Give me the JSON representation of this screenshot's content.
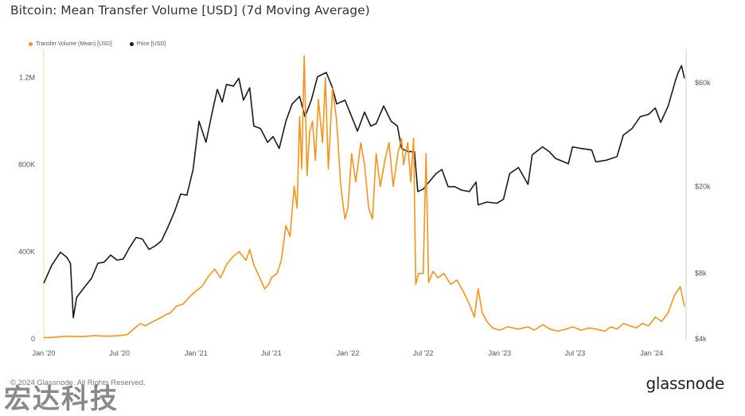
{
  "header": {
    "title": "Bitcoin: Mean Transfer Volume [USD] (7d Moving Average)"
  },
  "legend": [
    {
      "label": "Transfer Volume (Mean) [USD]",
      "color": "#f7931a"
    },
    {
      "label": "Price [USD]",
      "color": "#1a1a1a"
    }
  ],
  "footer": {
    "copyright": "© 2024 Glassnode. All Rights Reserved.",
    "brand": "glassnode",
    "watermark": "宏达科技"
  },
  "chart_data": {
    "type": "line",
    "x_ticks": [
      "Jan '20",
      "Jul '20",
      "Jan '21",
      "Jul '21",
      "Jan '22",
      "Jul '22",
      "Jan '23",
      "Jul '23",
      "Jan '24"
    ],
    "y_left_ticks": [
      "0",
      "400K",
      "800K",
      "1.2M"
    ],
    "y_left_ticks_values": [
      0,
      400000,
      800000,
      1200000
    ],
    "y_right_ticks": [
      "$4k",
      "$8k",
      "$20k",
      "$60k"
    ],
    "y_right_ticks_values": [
      4000,
      8000,
      20000,
      60000
    ],
    "y_left_range": [
      0,
      1300000
    ],
    "y_right_range": [
      4000,
      80000
    ],
    "y_right_scale": "log",
    "grid": false,
    "legend_position": "top-left",
    "series": [
      {
        "name": "Transfer Volume (Mean) [USD]",
        "axis": "left",
        "color": "#f7931a",
        "points": [
          [
            "2020-01-01",
            5000
          ],
          [
            "2020-02-01",
            8000
          ],
          [
            "2020-03-01",
            12000
          ],
          [
            "2020-04-01",
            10000
          ],
          [
            "2020-05-01",
            15000
          ],
          [
            "2020-06-01",
            12000
          ],
          [
            "2020-07-01",
            15000
          ],
          [
            "2020-07-20",
            20000
          ],
          [
            "2020-08-01",
            40000
          ],
          [
            "2020-08-20",
            70000
          ],
          [
            "2020-09-01",
            60000
          ],
          [
            "2020-09-20",
            80000
          ],
          [
            "2020-10-01",
            90000
          ],
          [
            "2020-10-20",
            110000
          ],
          [
            "2020-11-01",
            120000
          ],
          [
            "2020-11-15",
            150000
          ],
          [
            "2020-12-01",
            160000
          ],
          [
            "2020-12-15",
            190000
          ],
          [
            "2021-01-01",
            220000
          ],
          [
            "2021-01-15",
            240000
          ],
          [
            "2021-02-01",
            290000
          ],
          [
            "2021-02-15",
            320000
          ],
          [
            "2021-03-01",
            280000
          ],
          [
            "2021-03-15",
            340000
          ],
          [
            "2021-04-01",
            380000
          ],
          [
            "2021-04-15",
            400000
          ],
          [
            "2021-05-01",
            360000
          ],
          [
            "2021-05-10",
            410000
          ],
          [
            "2021-05-20",
            340000
          ],
          [
            "2021-06-01",
            290000
          ],
          [
            "2021-06-15",
            230000
          ],
          [
            "2021-06-25",
            250000
          ],
          [
            "2021-07-01",
            280000
          ],
          [
            "2021-07-15",
            300000
          ],
          [
            "2021-07-25",
            360000
          ],
          [
            "2021-08-05",
            520000
          ],
          [
            "2021-08-15",
            470000
          ],
          [
            "2021-08-25",
            700000
          ],
          [
            "2021-09-01",
            600000
          ],
          [
            "2021-09-07",
            1020000
          ],
          [
            "2021-09-12",
            780000
          ],
          [
            "2021-09-18",
            1300000
          ],
          [
            "2021-09-25",
            750000
          ],
          [
            "2021-10-01",
            950000
          ],
          [
            "2021-10-08",
            1000000
          ],
          [
            "2021-10-15",
            820000
          ],
          [
            "2021-10-22",
            1100000
          ],
          [
            "2021-11-01",
            900000
          ],
          [
            "2021-11-08",
            1200000
          ],
          [
            "2021-11-15",
            780000
          ],
          [
            "2021-11-25",
            1150000
          ],
          [
            "2021-12-05",
            1000000
          ],
          [
            "2021-12-15",
            700000
          ],
          [
            "2021-12-25",
            550000
          ],
          [
            "2022-01-01",
            600000
          ],
          [
            "2022-01-10",
            850000
          ],
          [
            "2022-01-20",
            720000
          ],
          [
            "2022-02-01",
            900000
          ],
          [
            "2022-02-10",
            800000
          ],
          [
            "2022-02-20",
            600000
          ],
          [
            "2022-03-01",
            550000
          ],
          [
            "2022-03-10",
            850000
          ],
          [
            "2022-03-20",
            700000
          ],
          [
            "2022-04-01",
            830000
          ],
          [
            "2022-04-10",
            900000
          ],
          [
            "2022-04-20",
            700000
          ],
          [
            "2022-05-01",
            850000
          ],
          [
            "2022-05-10",
            920000
          ],
          [
            "2022-05-15",
            800000
          ],
          [
            "2022-05-25",
            900000
          ],
          [
            "2022-06-01",
            720000
          ],
          [
            "2022-06-08",
            920000
          ],
          [
            "2022-06-13",
            250000
          ],
          [
            "2022-06-20",
            300000
          ],
          [
            "2022-07-01",
            300000
          ],
          [
            "2022-07-08",
            850000
          ],
          [
            "2022-07-14",
            260000
          ],
          [
            "2022-07-25",
            310000
          ],
          [
            "2022-08-05",
            280000
          ],
          [
            "2022-08-20",
            300000
          ],
          [
            "2022-09-05",
            250000
          ],
          [
            "2022-09-20",
            270000
          ],
          [
            "2022-10-05",
            220000
          ],
          [
            "2022-10-20",
            160000
          ],
          [
            "2022-11-01",
            100000
          ],
          [
            "2022-11-10",
            230000
          ],
          [
            "2022-11-20",
            120000
          ],
          [
            "2022-12-01",
            80000
          ],
          [
            "2022-12-15",
            50000
          ],
          [
            "2023-01-01",
            40000
          ],
          [
            "2023-01-20",
            55000
          ],
          [
            "2023-02-15",
            45000
          ],
          [
            "2023-03-10",
            55000
          ],
          [
            "2023-03-25",
            40000
          ],
          [
            "2023-04-15",
            65000
          ],
          [
            "2023-05-01",
            45000
          ],
          [
            "2023-05-20",
            35000
          ],
          [
            "2023-06-10",
            45000
          ],
          [
            "2023-06-25",
            55000
          ],
          [
            "2023-07-15",
            40000
          ],
          [
            "2023-08-05",
            50000
          ],
          [
            "2023-08-20",
            45000
          ],
          [
            "2023-09-10",
            35000
          ],
          [
            "2023-09-25",
            55000
          ],
          [
            "2023-10-10",
            45000
          ],
          [
            "2023-10-25",
            70000
          ],
          [
            "2023-11-10",
            60000
          ],
          [
            "2023-11-25",
            50000
          ],
          [
            "2023-12-10",
            70000
          ],
          [
            "2023-12-25",
            60000
          ],
          [
            "2024-01-10",
            100000
          ],
          [
            "2024-01-25",
            80000
          ],
          [
            "2024-02-10",
            120000
          ],
          [
            "2024-02-25",
            200000
          ],
          [
            "2024-03-10",
            240000
          ],
          [
            "2024-03-20",
            150000
          ]
        ]
      },
      {
        "name": "Price [USD]",
        "axis": "right",
        "color": "#1a1a1a",
        "points": [
          [
            "2020-01-01",
            7200
          ],
          [
            "2020-01-20",
            8700
          ],
          [
            "2020-02-10",
            10000
          ],
          [
            "2020-02-25",
            9500
          ],
          [
            "2020-03-05",
            8900
          ],
          [
            "2020-03-12",
            5000
          ],
          [
            "2020-03-20",
            6200
          ],
          [
            "2020-04-05",
            6800
          ],
          [
            "2020-04-25",
            7600
          ],
          [
            "2020-05-10",
            8900
          ],
          [
            "2020-05-25",
            9000
          ],
          [
            "2020-06-10",
            9700
          ],
          [
            "2020-06-25",
            9200
          ],
          [
            "2020-07-10",
            9300
          ],
          [
            "2020-07-25",
            10500
          ],
          [
            "2020-08-10",
            11700
          ],
          [
            "2020-08-25",
            11500
          ],
          [
            "2020-09-10",
            10300
          ],
          [
            "2020-09-25",
            10700
          ],
          [
            "2020-10-10",
            11300
          ],
          [
            "2020-10-25",
            13000
          ],
          [
            "2020-11-10",
            15300
          ],
          [
            "2020-11-25",
            18500
          ],
          [
            "2020-12-10",
            18300
          ],
          [
            "2020-12-25",
            24000
          ],
          [
            "2021-01-08",
            40000
          ],
          [
            "2021-01-25",
            32000
          ],
          [
            "2021-02-10",
            45000
          ],
          [
            "2021-02-21",
            56000
          ],
          [
            "2021-03-05",
            49000
          ],
          [
            "2021-03-15",
            59000
          ],
          [
            "2021-04-01",
            58000
          ],
          [
            "2021-04-14",
            63000
          ],
          [
            "2021-04-25",
            50000
          ],
          [
            "2021-05-10",
            57000
          ],
          [
            "2021-05-20",
            38000
          ],
          [
            "2021-06-05",
            37000
          ],
          [
            "2021-06-22",
            32000
          ],
          [
            "2021-07-05",
            34000
          ],
          [
            "2021-07-20",
            30000
          ],
          [
            "2021-08-05",
            40000
          ],
          [
            "2021-08-20",
            48000
          ],
          [
            "2021-09-07",
            52000
          ],
          [
            "2021-09-20",
            42000
          ],
          [
            "2021-10-05",
            50000
          ],
          [
            "2021-10-20",
            64000
          ],
          [
            "2021-11-10",
            67000
          ],
          [
            "2021-11-25",
            57000
          ],
          [
            "2021-12-05",
            48000
          ],
          [
            "2021-12-25",
            50000
          ],
          [
            "2022-01-10",
            42000
          ],
          [
            "2022-01-24",
            36000
          ],
          [
            "2022-02-10",
            44000
          ],
          [
            "2022-02-25",
            38000
          ],
          [
            "2022-03-10",
            39000
          ],
          [
            "2022-03-28",
            47000
          ],
          [
            "2022-04-15",
            40000
          ],
          [
            "2022-04-30",
            38000
          ],
          [
            "2022-05-10",
            30000
          ],
          [
            "2022-05-25",
            29000
          ],
          [
            "2022-06-10",
            29000
          ],
          [
            "2022-06-18",
            19000
          ],
          [
            "2022-07-01",
            19500
          ],
          [
            "2022-07-15",
            21000
          ],
          [
            "2022-08-01",
            23000
          ],
          [
            "2022-08-15",
            24000
          ],
          [
            "2022-08-30",
            20000
          ],
          [
            "2022-09-15",
            20000
          ],
          [
            "2022-10-01",
            19300
          ],
          [
            "2022-10-20",
            19000
          ],
          [
            "2022-11-05",
            21000
          ],
          [
            "2022-11-10",
            16500
          ],
          [
            "2022-12-01",
            17000
          ],
          [
            "2022-12-25",
            16800
          ],
          [
            "2023-01-10",
            17500
          ],
          [
            "2023-01-25",
            23000
          ],
          [
            "2023-02-15",
            24500
          ],
          [
            "2023-03-10",
            20500
          ],
          [
            "2023-03-20",
            28000
          ],
          [
            "2023-04-14",
            30500
          ],
          [
            "2023-04-30",
            29000
          ],
          [
            "2023-05-15",
            27000
          ],
          [
            "2023-06-15",
            25500
          ],
          [
            "2023-06-25",
            30500
          ],
          [
            "2023-07-15",
            30000
          ],
          [
            "2023-08-10",
            29500
          ],
          [
            "2023-08-20",
            26000
          ],
          [
            "2023-09-15",
            26500
          ],
          [
            "2023-10-10",
            27500
          ],
          [
            "2023-10-25",
            34500
          ],
          [
            "2023-11-15",
            37000
          ],
          [
            "2023-12-05",
            42000
          ],
          [
            "2023-12-25",
            43000
          ],
          [
            "2024-01-10",
            46000
          ],
          [
            "2024-01-23",
            39500
          ],
          [
            "2024-02-10",
            47000
          ],
          [
            "2024-02-28",
            62000
          ],
          [
            "2024-03-05",
            67000
          ],
          [
            "2024-03-13",
            72000
          ],
          [
            "2024-03-20",
            63000
          ]
        ]
      }
    ]
  }
}
